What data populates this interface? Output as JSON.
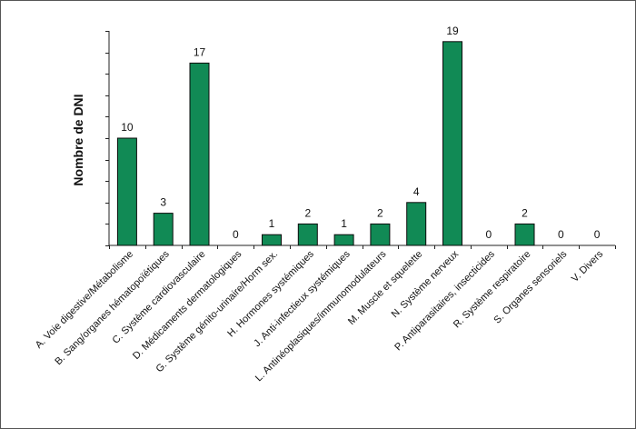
{
  "chart_data": {
    "type": "bar",
    "title": "",
    "xlabel": "",
    "ylabel": "Nombre de DNI",
    "ylim": [
      0,
      20
    ],
    "y_tick_step": 2,
    "grid": false,
    "bar_color": "#118A55",
    "categories": [
      "A. Voie digestive/Métabolisme",
      "B. Sang/organes hématopoïétiques",
      "C. Système cardiovasculaire",
      "D. Médicaments dermatologiques",
      "G. Système génito-urinaire/Horm sex.",
      "H. Hormones systémiques",
      "J. Anti-infectieux systémiques",
      "L. Antinéoplasiques/immunomodulateurs",
      "M. Muscle et squelette",
      "N. Système nerveux",
      "P. Antiparasitaires, insecticides",
      "R. Système respiratoire",
      "S. Organes sensoriels",
      "V. Divers"
    ],
    "values": [
      10,
      3,
      17,
      0,
      1,
      2,
      1,
      2,
      4,
      19,
      0,
      2,
      0,
      0
    ]
  }
}
